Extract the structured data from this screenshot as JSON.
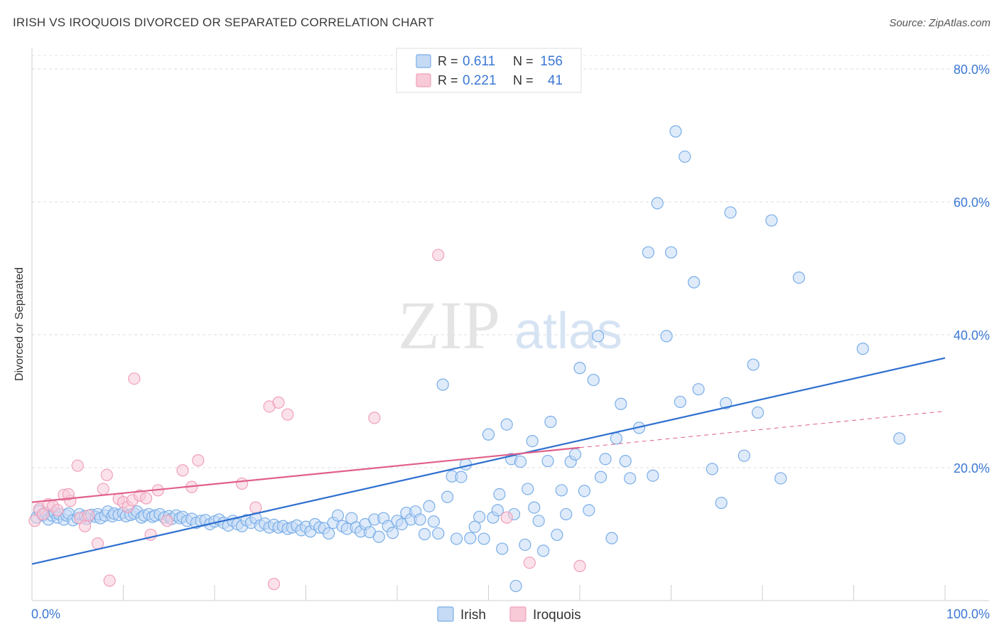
{
  "title": "IRISH VS IROQUOIS DIVORCED OR SEPARATED CORRELATION CHART",
  "source": "Source: ZipAtlas.com",
  "watermark": {
    "zip": "ZIP",
    "atlas": "atlas"
  },
  "chart_data": {
    "type": "scatter",
    "ylabel": "Divorced or Separated",
    "xlim": [
      0,
      100
    ],
    "ylim": [
      0,
      80
    ],
    "x_tick_labels": [
      "0.0%",
      "100.0%"
    ],
    "y_ticks": [
      20,
      40,
      60,
      80
    ],
    "y_tick_labels": [
      "20.0%",
      "40.0%",
      "60.0%",
      "80.0%"
    ],
    "grid": true,
    "legend_position": "top-center",
    "series": [
      {
        "name": "Irish",
        "color": "#7aaee8",
        "fill": "#c5daf5",
        "line_color": "#2d6fd0",
        "legend": {
          "r_label": "R = ",
          "r_value": "0.611",
          "n_label": "N = ",
          "n_value": "156"
        },
        "trend": {
          "x0": 0,
          "y0": 5.5,
          "x1": 100,
          "y1": 36.5,
          "dashed_from": null
        },
        "points": [
          [
            0.5,
            12.5
          ],
          [
            0.8,
            13.5
          ],
          [
            1.2,
            12.8
          ],
          [
            1.5,
            13.2
          ],
          [
            1.8,
            12.2
          ],
          [
            2.2,
            12.8
          ],
          [
            2.5,
            13.2
          ],
          [
            2.8,
            12.5
          ],
          [
            3.0,
            13.0
          ],
          [
            3.5,
            12.2
          ],
          [
            3.8,
            12.8
          ],
          [
            4.0,
            13.1
          ],
          [
            4.5,
            12.1
          ],
          [
            5.0,
            12.4
          ],
          [
            5.2,
            13.0
          ],
          [
            5.8,
            12.7
          ],
          [
            6.0,
            12.3
          ],
          [
            6.5,
            12.9
          ],
          [
            7.0,
            12.6
          ],
          [
            7.2,
            13.0
          ],
          [
            7.5,
            12.4
          ],
          [
            8.0,
            12.8
          ],
          [
            8.3,
            13.4
          ],
          [
            8.8,
            12.7
          ],
          [
            9.0,
            13.1
          ],
          [
            9.5,
            12.9
          ],
          [
            10.0,
            13.2
          ],
          [
            10.3,
            12.7
          ],
          [
            10.8,
            12.9
          ],
          [
            11.2,
            13.1
          ],
          [
            11.5,
            13.4
          ],
          [
            12.0,
            12.5
          ],
          [
            12.3,
            12.8
          ],
          [
            12.8,
            13.0
          ],
          [
            13.2,
            12.6
          ],
          [
            13.5,
            12.8
          ],
          [
            14.0,
            13.0
          ],
          [
            14.5,
            12.5
          ],
          [
            15.0,
            12.7
          ],
          [
            15.3,
            12.3
          ],
          [
            15.8,
            12.8
          ],
          [
            16.2,
            12.4
          ],
          [
            16.5,
            12.6
          ],
          [
            17.0,
            12.0
          ],
          [
            17.5,
            12.3
          ],
          [
            18.0,
            11.7
          ],
          [
            18.5,
            12.0
          ],
          [
            19.0,
            12.1
          ],
          [
            19.5,
            11.5
          ],
          [
            20.0,
            11.9
          ],
          [
            20.5,
            12.2
          ],
          [
            21.0,
            11.7
          ],
          [
            21.5,
            11.3
          ],
          [
            22.0,
            12.0
          ],
          [
            22.5,
            11.5
          ],
          [
            23.0,
            11.2
          ],
          [
            23.5,
            12.1
          ],
          [
            24.0,
            11.7
          ],
          [
            24.5,
            12.4
          ],
          [
            25.0,
            11.3
          ],
          [
            25.5,
            11.6
          ],
          [
            26.0,
            11.0
          ],
          [
            26.5,
            11.4
          ],
          [
            27.0,
            11.0
          ],
          [
            27.5,
            11.2
          ],
          [
            28.0,
            10.8
          ],
          [
            28.5,
            11.0
          ],
          [
            29.0,
            11.3
          ],
          [
            29.5,
            10.6
          ],
          [
            30.0,
            11.1
          ],
          [
            30.5,
            10.4
          ],
          [
            31.0,
            11.5
          ],
          [
            31.5,
            11.0
          ],
          [
            32.0,
            10.9
          ],
          [
            32.5,
            10.1
          ],
          [
            33.0,
            11.7
          ],
          [
            33.5,
            12.8
          ],
          [
            34.0,
            11.2
          ],
          [
            34.5,
            10.8
          ],
          [
            35.0,
            12.4
          ],
          [
            35.5,
            11.0
          ],
          [
            36.0,
            10.4
          ],
          [
            36.5,
            11.5
          ],
          [
            37.0,
            10.3
          ],
          [
            37.5,
            12.2
          ],
          [
            38.0,
            9.6
          ],
          [
            38.5,
            12.4
          ],
          [
            39.0,
            11.2
          ],
          [
            39.5,
            10.2
          ],
          [
            40.0,
            12.0
          ],
          [
            40.5,
            11.5
          ],
          [
            41.0,
            13.2
          ],
          [
            41.5,
            12.2
          ],
          [
            42.0,
            13.4
          ],
          [
            42.5,
            12.2
          ],
          [
            43.0,
            10.0
          ],
          [
            43.5,
            14.2
          ],
          [
            44.0,
            11.9
          ],
          [
            44.5,
            10.1
          ],
          [
            45.0,
            32.5
          ],
          [
            45.5,
            15.6
          ],
          [
            46.0,
            18.7
          ],
          [
            46.5,
            9.3
          ],
          [
            47.0,
            18.6
          ],
          [
            47.5,
            20.5
          ],
          [
            48.0,
            9.4
          ],
          [
            48.5,
            11.1
          ],
          [
            49.0,
            12.6
          ],
          [
            49.5,
            9.3
          ],
          [
            50.0,
            25.0
          ],
          [
            50.5,
            12.5
          ],
          [
            51.0,
            13.6
          ],
          [
            51.2,
            16.0
          ],
          [
            51.5,
            7.8
          ],
          [
            52.0,
            26.5
          ],
          [
            52.5,
            21.3
          ],
          [
            52.8,
            13.0
          ],
          [
            53.0,
            2.2
          ],
          [
            53.5,
            20.9
          ],
          [
            54.0,
            8.4
          ],
          [
            54.3,
            16.8
          ],
          [
            54.8,
            24.0
          ],
          [
            55.0,
            14.0
          ],
          [
            55.5,
            12.0
          ],
          [
            56.0,
            7.5
          ],
          [
            56.5,
            21.0
          ],
          [
            56.8,
            26.9
          ],
          [
            57.5,
            9.9
          ],
          [
            58.0,
            16.6
          ],
          [
            58.5,
            13.0
          ],
          [
            59.0,
            20.9
          ],
          [
            59.5,
            22.0
          ],
          [
            60.0,
            35.0
          ],
          [
            60.5,
            16.5
          ],
          [
            61.0,
            13.6
          ],
          [
            61.5,
            33.2
          ],
          [
            62.0,
            39.8
          ],
          [
            62.3,
            18.6
          ],
          [
            62.8,
            21.3
          ],
          [
            63.5,
            9.4
          ],
          [
            64.0,
            24.4
          ],
          [
            64.5,
            29.6
          ],
          [
            65.0,
            21.0
          ],
          [
            65.5,
            18.4
          ],
          [
            66.5,
            26.0
          ],
          [
            67.5,
            52.4
          ],
          [
            68.0,
            18.8
          ],
          [
            68.5,
            59.8
          ],
          [
            69.5,
            39.8
          ],
          [
            70.0,
            52.4
          ],
          [
            70.5,
            70.6
          ],
          [
            71.0,
            29.9
          ],
          [
            71.5,
            66.8
          ],
          [
            72.5,
            47.9
          ],
          [
            73.0,
            31.8
          ],
          [
            74.5,
            19.8
          ],
          [
            75.5,
            14.7
          ],
          [
            76.0,
            29.7
          ],
          [
            76.5,
            58.4
          ],
          [
            78.0,
            21.8
          ],
          [
            79.0,
            35.5
          ],
          [
            79.5,
            28.3
          ],
          [
            81.0,
            57.2
          ],
          [
            82.0,
            18.4
          ],
          [
            84.0,
            48.6
          ],
          [
            91.0,
            37.9
          ],
          [
            95.0,
            24.4
          ]
        ]
      },
      {
        "name": "Iroquois",
        "color": "#f0a0ba",
        "fill": "#f8cad8",
        "line_color": "#e0608a",
        "legend": {
          "r_label": "R = ",
          "r_value": "0.221",
          "n_label": "N = ",
          "n_value": "41"
        },
        "trend": {
          "x0": 0,
          "y0": 14.8,
          "x1": 100,
          "y1": 28.5,
          "dashed_from": 60
        },
        "points": [
          [
            0.3,
            12.0
          ],
          [
            0.8,
            13.8
          ],
          [
            1.2,
            13.0
          ],
          [
            1.8,
            14.5
          ],
          [
            2.3,
            14.2
          ],
          [
            2.8,
            13.6
          ],
          [
            3.5,
            15.9
          ],
          [
            4.2,
            15.0
          ],
          [
            4.0,
            16.0
          ],
          [
            5.0,
            20.3
          ],
          [
            5.3,
            12.4
          ],
          [
            5.8,
            11.2
          ],
          [
            6.2,
            12.8
          ],
          [
            7.2,
            8.6
          ],
          [
            7.8,
            16.8
          ],
          [
            8.2,
            18.9
          ],
          [
            8.5,
            3.0
          ],
          [
            9.5,
            15.3
          ],
          [
            10.0,
            14.8
          ],
          [
            10.5,
            14.1
          ],
          [
            11.0,
            15.1
          ],
          [
            11.2,
            33.4
          ],
          [
            11.8,
            15.8
          ],
          [
            12.5,
            15.4
          ],
          [
            13.0,
            9.9
          ],
          [
            13.8,
            16.6
          ],
          [
            14.8,
            12.0
          ],
          [
            16.5,
            19.6
          ],
          [
            17.5,
            17.1
          ],
          [
            18.2,
            21.1
          ],
          [
            23.0,
            17.6
          ],
          [
            24.5,
            14.0
          ],
          [
            26.0,
            29.2
          ],
          [
            26.5,
            2.5
          ],
          [
            27.0,
            29.8
          ],
          [
            28.0,
            28.0
          ],
          [
            37.5,
            27.5
          ],
          [
            44.5,
            52.0
          ],
          [
            52.0,
            12.5
          ],
          [
            54.5,
            5.7
          ],
          [
            60.0,
            5.2
          ]
        ]
      }
    ]
  }
}
